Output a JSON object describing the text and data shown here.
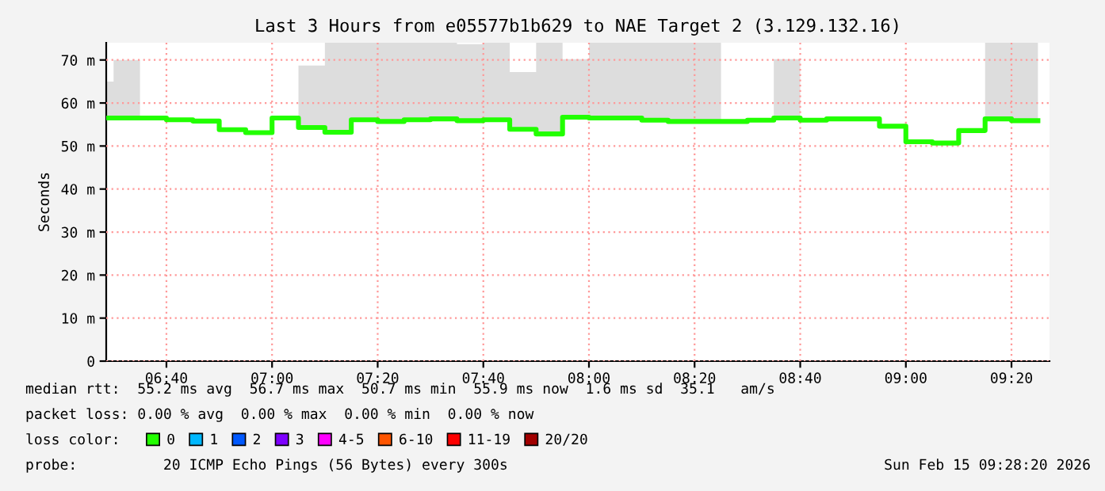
{
  "chart_data": {
    "type": "step",
    "title": "Last 3 Hours from e05577b1b629 to NAE Target 2 (3.129.132.16)",
    "ylabel": "Seconds",
    "xlim": [
      6.4767,
      9.4533
    ],
    "xticks": [
      {
        "value": 6.6667,
        "label": "06:40"
      },
      {
        "value": 7,
        "label": "07:00"
      },
      {
        "value": 7.3333,
        "label": "07:20"
      },
      {
        "value": 7.6667,
        "label": "07:40"
      },
      {
        "value": 8,
        "label": "08:00"
      },
      {
        "value": 8.3333,
        "label": "08:20"
      },
      {
        "value": 8.6667,
        "label": "08:40"
      },
      {
        "value": 9,
        "label": "09:00"
      },
      {
        "value": 9.3333,
        "label": "09:20"
      }
    ],
    "ylim": [
      0,
      74
    ],
    "yticks": [
      0,
      {
        "value": 10,
        "label": "10 m"
      },
      {
        "value": 20,
        "label": "20 m"
      },
      {
        "value": 30,
        "label": "30 m"
      },
      {
        "value": 40,
        "label": "40 m"
      },
      {
        "value": 50,
        "label": "50 m"
      },
      {
        "value": 60,
        "label": "60 m"
      },
      {
        "value": 70,
        "label": "70 m"
      }
    ],
    "grid": true,
    "legend": "bottom",
    "legend_title": "loss color:",
    "series": [
      {
        "name": "0",
        "color": "#22ff00",
        "x": [
          6.4767,
          6.5,
          6.5833,
          6.6667,
          6.75,
          6.8333,
          6.9167,
          7,
          7.0833,
          7.1667,
          7.25,
          7.3333,
          7.4167,
          7.5,
          7.5833,
          7.6667,
          7.75,
          7.8333,
          7.9167,
          8,
          8.0833,
          8.1667,
          8.25,
          8.3333,
          8.4167,
          8.5,
          8.5833,
          8.6667,
          8.75,
          8.8333,
          8.9167,
          9,
          9.0833,
          9.1667,
          9.25,
          9.3333,
          9.4167
        ],
        "values": [
          56.5,
          56.5,
          56.5,
          56.1,
          55.8,
          53.8,
          53.1,
          56.5,
          54.3,
          53.2,
          56.1,
          55.7,
          56.1,
          56.3,
          55.9,
          56.1,
          53.9,
          52.8,
          56.7,
          56.5,
          56.5,
          56.0,
          55.7,
          55.7,
          55.7,
          56.0,
          56.5,
          56.0,
          56.3,
          56.3,
          54.6,
          51.0,
          50.7,
          53.6,
          56.3,
          55.9,
          55.9
        ],
        "lower": [
          56.5,
          56.5,
          56.5,
          null,
          null,
          null,
          null,
          null,
          54.3,
          53.2,
          56.1,
          55.7,
          56.1,
          56.3,
          55.9,
          56.1,
          53.9,
          52.8,
          56.7,
          56.5,
          56.5,
          56.0,
          55.7,
          55.7,
          55.7,
          null,
          56.5,
          56.0,
          null,
          null,
          null,
          null,
          null,
          null,
          56.3,
          55.9,
          55.9
        ],
        "upper": [
          65,
          70,
          74,
          null,
          null,
          null,
          null,
          null,
          68.7,
          74,
          74,
          74,
          74,
          74,
          73.7,
          74,
          67.2,
          74,
          70.2,
          74,
          74,
          74,
          74,
          74,
          74,
          null,
          70.2,
          74,
          null,
          null,
          null,
          null,
          null,
          null,
          74,
          74,
          74
        ]
      },
      {
        "name": "1",
        "color": "#00b8ff"
      },
      {
        "name": "2",
        "color": "#0059ff"
      },
      {
        "name": "3",
        "color": "#7e00ff"
      },
      {
        "name": "4-5",
        "color": "#ff00ff"
      },
      {
        "name": "6-10",
        "color": "#ff5500"
      },
      {
        "name": "11-19",
        "color": "#ff0000"
      },
      {
        "name": "20/20",
        "color": "#a10000"
      }
    ],
    "annotations": [
      "median rtt:  55.2 ms avg  56.7 ms max  50.7 ms min  55.9 ms now  1.6 ms sd  35.1   am/s",
      "packet loss: 0.00 % avg  0.00 % max  0.00 % min  0.00 % now",
      "probe:          20 ICMP Echo Pings (56 Bytes) every 300s",
      "Sun Feb 15 09:28:20 2026"
    ]
  }
}
